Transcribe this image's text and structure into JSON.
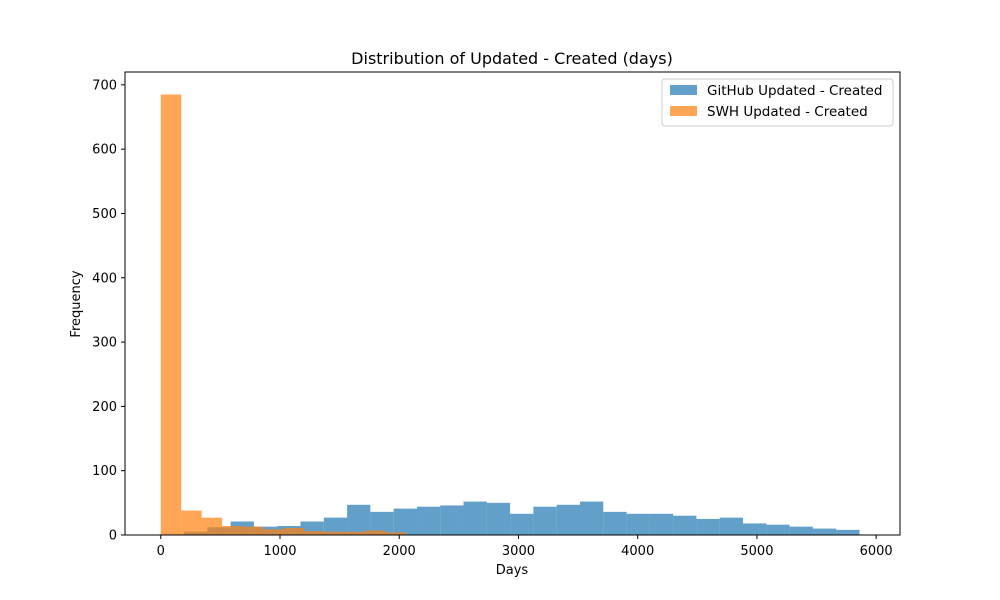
{
  "chart_data": {
    "type": "bar",
    "title": "Distribution of Updated - Created (days)",
    "xlabel": "Days",
    "ylabel": "Frequency",
    "xlim": [
      -300,
      6200
    ],
    "ylim": [
      0,
      720
    ],
    "x_ticks": [
      0,
      1000,
      2000,
      3000,
      4000,
      5000,
      6000
    ],
    "y_ticks": [
      0,
      100,
      200,
      300,
      400,
      500,
      600,
      700
    ],
    "grid": false,
    "legend_position": "top-right",
    "series": [
      {
        "name": "GitHub Updated - Created",
        "color": "#1f77b4",
        "opacity": 0.7,
        "bin_edges": [
          0,
          195.3,
          390.7,
          586,
          781.3,
          976.7,
          1172,
          1367.3,
          1562.7,
          1758,
          1953.3,
          2148.7,
          2344,
          2539.3,
          2734.7,
          2930,
          3125.3,
          3320.7,
          3516,
          3711.3,
          3906.7,
          4102,
          4297.3,
          4492.7,
          4688,
          4883.3,
          5078.7,
          5274,
          5469.3,
          5664.7,
          5860
        ],
        "values": [
          1,
          5,
          12,
          21,
          13,
          14,
          21,
          27,
          47,
          36,
          41,
          44,
          46,
          52,
          50,
          33,
          44,
          47,
          52,
          36,
          33,
          33,
          30,
          25,
          27,
          18,
          16,
          13,
          10,
          8
        ]
      },
      {
        "name": "SWH Updated - Created",
        "color": "#ff7f0e",
        "opacity": 0.7,
        "bin_edges": [
          0,
          171.4,
          342.9,
          514.3,
          685.7,
          857.1,
          1028.6,
          1200,
          1371.4,
          1542.9,
          1714.3,
          1885.7,
          2057.1
        ],
        "values": [
          685,
          38,
          27,
          14,
          13,
          9,
          11,
          6,
          5,
          5,
          7,
          4
        ]
      }
    ]
  }
}
